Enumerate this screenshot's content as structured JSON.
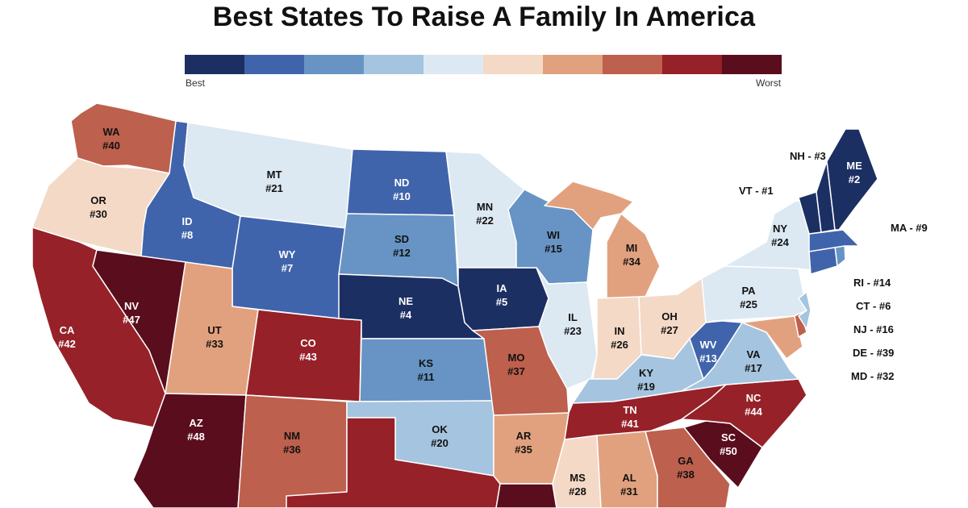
{
  "title": "Best States To Raise A Family In America",
  "legend": {
    "best_label": "Best",
    "worst_label": "Worst",
    "colors": [
      "#1c2f63",
      "#4064ab",
      "#6794c4",
      "#a5c4df",
      "#dce8f2",
      "#f4d9c7",
      "#e2a17e",
      "#bd604d",
      "#962128",
      "#5a0d1d"
    ]
  },
  "states": [
    {
      "id": "wa",
      "abbr": "WA",
      "label": "WA\n#40",
      "rank": 40,
      "color": "#bd604d"
    },
    {
      "id": "or",
      "abbr": "OR",
      "label": "OR\n#30",
      "rank": 30,
      "color": "#f4d9c7"
    },
    {
      "id": "ca",
      "abbr": "CA",
      "label": "CA\n#42",
      "rank": 42,
      "color": "#962128"
    },
    {
      "id": "id",
      "abbr": "ID",
      "label": "ID\n#8",
      "rank": 8,
      "color": "#4064ab"
    },
    {
      "id": "nv",
      "abbr": "NV",
      "label": "NV\n#47",
      "rank": 47,
      "color": "#5a0d1d"
    },
    {
      "id": "mt",
      "abbr": "MT",
      "label": "MT\n#21",
      "rank": 21,
      "color": "#dce8f2"
    },
    {
      "id": "wy",
      "abbr": "WY",
      "label": "WY\n#7",
      "rank": 7,
      "color": "#4064ab"
    },
    {
      "id": "ut",
      "abbr": "UT",
      "label": "UT\n#33",
      "rank": 33,
      "color": "#e2a17e"
    },
    {
      "id": "az",
      "abbr": "AZ",
      "label": "AZ\n#48",
      "rank": 48,
      "color": "#5a0d1d"
    },
    {
      "id": "co",
      "abbr": "CO",
      "label": "CO\n#43",
      "rank": 43,
      "color": "#962128"
    },
    {
      "id": "nm",
      "abbr": "NM",
      "label": "NM\n#36",
      "rank": 36,
      "color": "#bd604d"
    },
    {
      "id": "nd",
      "abbr": "ND",
      "label": "ND\n#10",
      "rank": 10,
      "color": "#4064ab"
    },
    {
      "id": "sd",
      "abbr": "SD",
      "label": "SD\n#12",
      "rank": 12,
      "color": "#6794c4"
    },
    {
      "id": "ne",
      "abbr": "NE",
      "label": "NE\n#4",
      "rank": 4,
      "color": "#1c2f63"
    },
    {
      "id": "ks",
      "abbr": "KS",
      "label": "KS\n#11",
      "rank": 11,
      "color": "#6794c4"
    },
    {
      "id": "ok",
      "abbr": "OK",
      "label": "OK\n#20",
      "rank": 20,
      "color": "#a5c4df"
    },
    {
      "id": "tx",
      "abbr": "TX",
      "label": "",
      "rank": null,
      "color": "#962128"
    },
    {
      "id": "mn",
      "abbr": "MN",
      "label": "MN\n#22",
      "rank": 22,
      "color": "#dce8f2"
    },
    {
      "id": "ia",
      "abbr": "IA",
      "label": "IA\n#5",
      "rank": 5,
      "color": "#1c2f63"
    },
    {
      "id": "mo",
      "abbr": "MO",
      "label": "MO\n#37",
      "rank": 37,
      "color": "#bd604d"
    },
    {
      "id": "ar",
      "abbr": "AR",
      "label": "AR\n#35",
      "rank": 35,
      "color": "#e2a17e"
    },
    {
      "id": "la",
      "abbr": "LA",
      "label": "",
      "rank": null,
      "color": "#5a0d1d"
    },
    {
      "id": "wi",
      "abbr": "WI",
      "label": "WI\n#15",
      "rank": 15,
      "color": "#6794c4"
    },
    {
      "id": "il",
      "abbr": "IL",
      "label": "IL\n#23",
      "rank": 23,
      "color": "#dce8f2"
    },
    {
      "id": "mi",
      "abbr": "MI",
      "label": "MI\n#34",
      "rank": 34,
      "color": "#e2a17e"
    },
    {
      "id": "in",
      "abbr": "IN",
      "label": "IN\n#26",
      "rank": 26,
      "color": "#f4d9c7"
    },
    {
      "id": "oh",
      "abbr": "OH",
      "label": "OH\n#27",
      "rank": 27,
      "color": "#f4d9c7"
    },
    {
      "id": "ky",
      "abbr": "KY",
      "label": "KY\n#19",
      "rank": 19,
      "color": "#a5c4df"
    },
    {
      "id": "tn",
      "abbr": "TN",
      "label": "TN\n#41",
      "rank": 41,
      "color": "#962128"
    },
    {
      "id": "ms",
      "abbr": "MS",
      "label": "MS\n#28",
      "rank": 28,
      "color": "#f4d9c7"
    },
    {
      "id": "al",
      "abbr": "AL",
      "label": "AL\n#31",
      "rank": 31,
      "color": "#e2a17e"
    },
    {
      "id": "ga",
      "abbr": "GA",
      "label": "GA\n#38",
      "rank": 38,
      "color": "#bd604d"
    },
    {
      "id": "sc",
      "abbr": "SC",
      "label": "SC\n#50",
      "rank": 50,
      "color": "#5a0d1d"
    },
    {
      "id": "nc",
      "abbr": "NC",
      "label": "NC\n#44",
      "rank": 44,
      "color": "#962128"
    },
    {
      "id": "va",
      "abbr": "VA",
      "label": "VA\n#17",
      "rank": 17,
      "color": "#a5c4df"
    },
    {
      "id": "wv",
      "abbr": "WV",
      "label": "WV\n#13",
      "rank": 13,
      "color": "#4064ab"
    },
    {
      "id": "pa",
      "abbr": "PA",
      "label": "PA\n#25",
      "rank": 25,
      "color": "#dce8f2"
    },
    {
      "id": "ny",
      "abbr": "NY",
      "label": "NY\n#24",
      "rank": 24,
      "color": "#dce8f2"
    },
    {
      "id": "md",
      "abbr": "MD",
      "label": "",
      "rank": 32,
      "color": "#e2a17e"
    },
    {
      "id": "de",
      "abbr": "DE",
      "label": "",
      "rank": 39,
      "color": "#bd604d"
    },
    {
      "id": "nj",
      "abbr": "NJ",
      "label": "",
      "rank": 16,
      "color": "#a5c4df"
    },
    {
      "id": "ct",
      "abbr": "CT",
      "label": "",
      "rank": 6,
      "color": "#4064ab"
    },
    {
      "id": "ri",
      "abbr": "RI",
      "label": "",
      "rank": 14,
      "color": "#6794c4"
    },
    {
      "id": "ma",
      "abbr": "MA",
      "label": "",
      "rank": 9,
      "color": "#4064ab"
    },
    {
      "id": "vt",
      "abbr": "VT",
      "label": "",
      "rank": 1,
      "color": "#1c2f63"
    },
    {
      "id": "nh",
      "abbr": "NH",
      "label": "",
      "rank": 3,
      "color": "#1c2f63"
    },
    {
      "id": "me",
      "abbr": "ME",
      "label": "ME\n#2",
      "rank": 2,
      "color": "#1c2f63"
    }
  ],
  "external_labels": {
    "nh": "NH - #3",
    "vt": "VT - #1",
    "ma": "MA - #9",
    "ri": "RI - #14",
    "ct": "CT - #6",
    "nj": "NJ - #16",
    "de": "DE - #39",
    "md": "MD - #32"
  }
}
